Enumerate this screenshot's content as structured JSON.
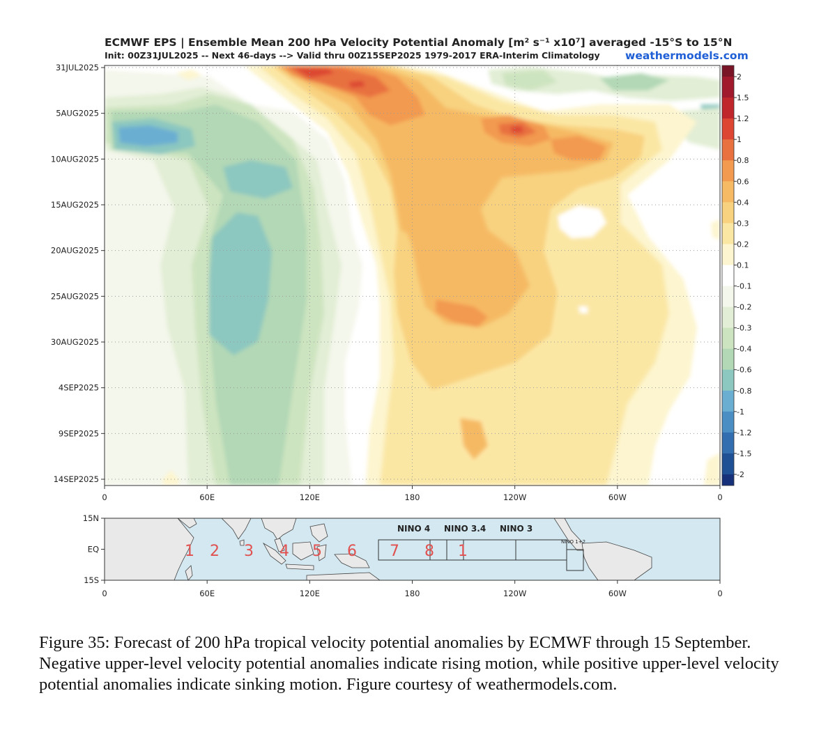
{
  "header": {
    "title": "ECMWF EPS | Ensemble Mean 200 hPa Velocity Potential Anomaly [m² s⁻¹ x10⁷] averaged -15°S to 15°N",
    "subtitle": "Init: 00Z31JUL2025 -- Next 46-days --> Valid thru 00Z15SEP2025 1979-2017 ERA-Interim Climatology",
    "source": "weathermodels.com"
  },
  "chart_data": {
    "type": "heatmap",
    "y_dates": [
      "31JUL2025",
      "5AUG2025",
      "10AUG2025",
      "15AUG2025",
      "20AUG2025",
      "25AUG2025",
      "30AUG2025",
      "4SEP2025",
      "9SEP2025",
      "14SEP2025"
    ],
    "x_ticks": [
      "0",
      "60E",
      "120E",
      "180",
      "120W",
      "60W",
      "0"
    ],
    "colorbar": {
      "levels": [
        "2",
        "1.5",
        "1.2",
        "1",
        "0.8",
        "0.6",
        "0.4",
        "0.3",
        "0.2",
        "0.1",
        "-0.1",
        "-0.2",
        "-0.3",
        "-0.4",
        "-0.6",
        "-0.8",
        "-1",
        "-1.2",
        "-1.5",
        "-2"
      ],
      "colors": [
        "#7a1528",
        "#a1192c",
        "#c0272d",
        "#dc4633",
        "#e8713f",
        "#f29a4f",
        "#f6b964",
        "#f8d27f",
        "#fbe7a4",
        "#fdf5cf",
        "#ffffff",
        "#f4f7ec",
        "#e2eed5",
        "#cde4c0",
        "#b2d8b5",
        "#8cc7c0",
        "#6aaed2",
        "#4a8ec4",
        "#336fb0",
        "#1f4f95",
        "#17307a"
      ]
    },
    "regions": {
      "rising_center": {
        "lon": 75,
        "start": "31JUL2025",
        "end": "14SEP2025",
        "peak_anomaly": -0.8
      },
      "sinking_center_early": {
        "lon": 215,
        "start": "5AUG2025",
        "peak_anomaly": 1.0
      },
      "sinking_center_north": {
        "lon": 150,
        "start": "31JUL2025",
        "peak_anomaly": 1.0
      },
      "sinking_broad": {
        "lon_range": [
          175,
          300
        ],
        "start": "15AUG2025",
        "end": "4SEP2025",
        "peak_anomaly": 0.6
      }
    }
  },
  "map": {
    "lat_ticks": [
      "15N",
      "EQ",
      "15S"
    ],
    "x_ticks": [
      "0",
      "60E",
      "120E",
      "180",
      "120W",
      "60W",
      "0"
    ],
    "nino_labels": [
      "NINO 4",
      "NINO 3.4",
      "NINO 3"
    ],
    "nino12_label": "NINO 1+2",
    "mjo_phases": [
      "1",
      "2",
      "3",
      "4",
      "5",
      "6",
      "7",
      "8",
      "1"
    ]
  },
  "caption": "Figure 35: Forecast of 200 hPa tropical velocity potential anomalies by ECMWF through 15 September. Negative upper-level velocity potential anomalies indicate rising motion, while positive upper-level velocity potential anomalies indicate sinking motion. Figure courtesy of weathermodels.com."
}
